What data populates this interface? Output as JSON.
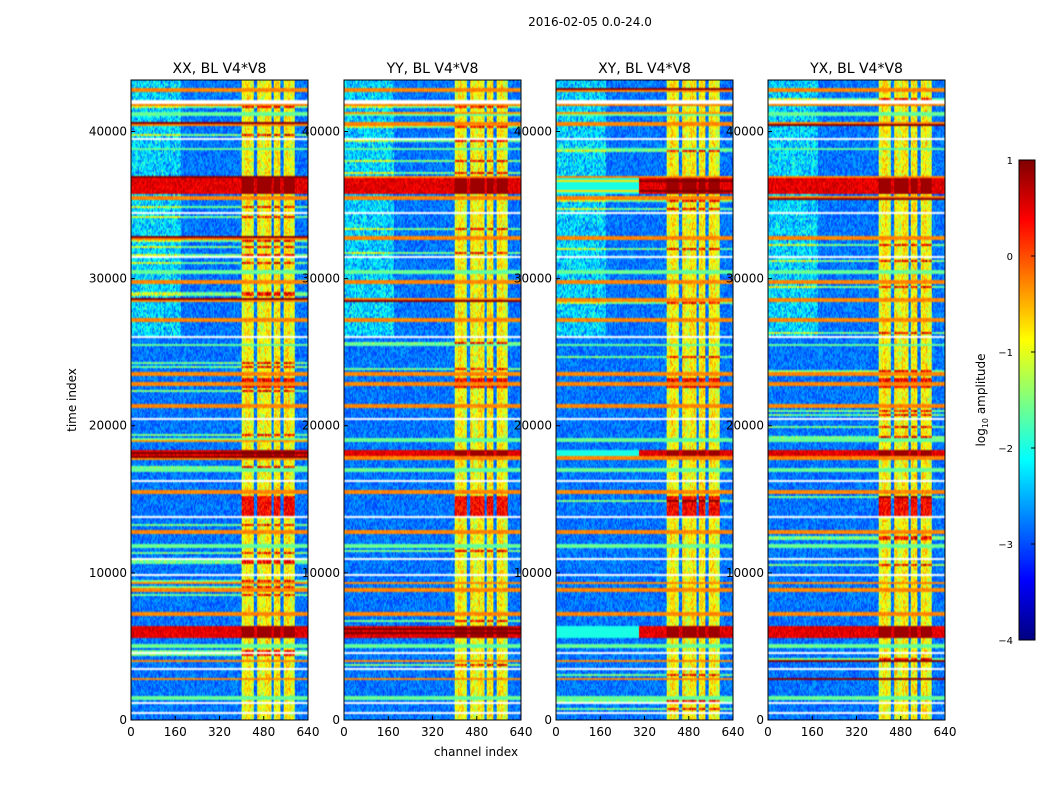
{
  "chart_data": {
    "type": "heatmap",
    "suptitle": "2016-02-05 0.0-24.0",
    "xlabel": "channel index",
    "ylabel": "time index",
    "xlim": [
      0,
      640
    ],
    "ylim": [
      0,
      43500
    ],
    "xticks": [
      0,
      160,
      320,
      480,
      640
    ],
    "yticks": [
      0,
      10000,
      20000,
      30000,
      40000
    ],
    "colorbar": {
      "label": "log10 amplitude",
      "label_base": "log",
      "label_sub": "10",
      "label_rest": " amplitude",
      "range": [
        -4,
        1
      ],
      "ticks": [
        1,
        0,
        -1,
        -2,
        -3,
        -4
      ],
      "tick_labels": [
        "1",
        "0",
        "−1",
        "−2",
        "−3",
        "−4"
      ],
      "colormap": "jet",
      "colors": [
        "#00007f",
        "#0000ff",
        "#007fff",
        "#00ffff",
        "#7fff7f",
        "#ffff00",
        "#ff7f00",
        "#ff0000",
        "#7f0000"
      ]
    },
    "panels": [
      {
        "title": "XX, BL V4*V8",
        "pol": "XX",
        "baseline": "V4*V8",
        "seed": 11
      },
      {
        "title": "YY, BL V4*V8",
        "pol": "YY",
        "baseline": "V4*V8",
        "seed": 23
      },
      {
        "title": "XY, BL V4*V8",
        "pol": "XY",
        "baseline": "V4*V8",
        "seed": 37
      },
      {
        "title": "YX, BL V4*V8",
        "pol": "YX",
        "baseline": "V4*V8",
        "seed": 53
      }
    ],
    "bright_channel_range": [
      400,
      590
    ],
    "gap_channels": [
      [
        445,
        455
      ],
      [
        508,
        516
      ],
      [
        542,
        550
      ]
    ],
    "orange_rows": [
      2800,
      4000,
      7200,
      8800,
      9300,
      12800,
      15500,
      17800,
      18200,
      21300,
      22800,
      23500,
      27200,
      28500,
      29800,
      32800,
      35500,
      36800,
      40500,
      41800,
      42800
    ],
    "green_rows": [
      1500,
      5000,
      11800,
      17000,
      19000,
      25500,
      30500,
      38800,
      41200
    ],
    "white_rows": [
      500,
      1200,
      3500,
      4600,
      9800,
      11000,
      13800,
      16200,
      20500,
      26000,
      31500,
      34500,
      39500,
      42000
    ],
    "dark_red_rows": [
      [
        5600,
        6400
      ],
      [
        35800,
        36800
      ],
      [
        18000,
        18300
      ]
    ],
    "hot_blocks": [
      [
        13800,
        15200
      ],
      [
        22500,
        23200
      ]
    ]
  }
}
